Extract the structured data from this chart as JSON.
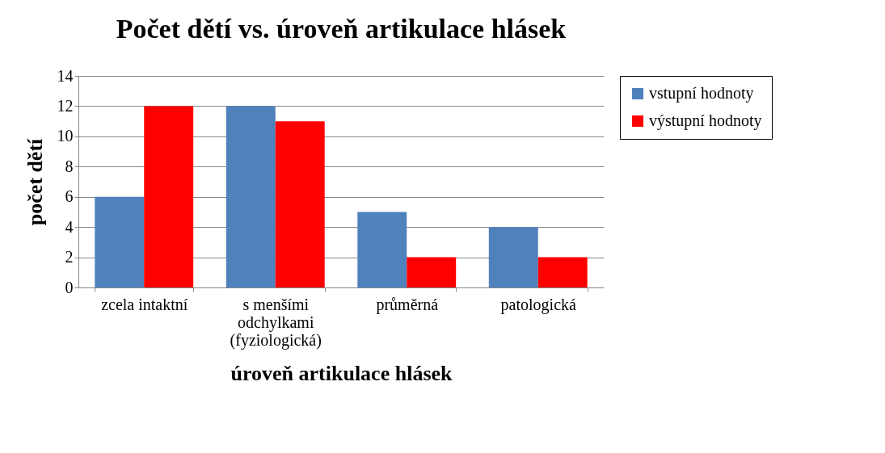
{
  "chart_data": {
    "type": "bar",
    "title": "Počet dětí vs. úroveň artikulace hlásek",
    "xlabel": "úroveň artikulace hlásek",
    "ylabel": "počet dětí",
    "categories": [
      "zcela intaktní",
      "s menšími odchylkami (fyziologická)",
      "průměrná",
      "patologická"
    ],
    "series": [
      {
        "name": "vstupní hodnoty",
        "color": "#4f81bd",
        "values": [
          6,
          12,
          5,
          4
        ]
      },
      {
        "name": "výstupní hodnoty",
        "color": "#ff0000",
        "values": [
          12,
          11,
          2,
          2
        ]
      }
    ],
    "ylim": [
      0,
      14
    ],
    "yticks": [
      0,
      2,
      4,
      6,
      8,
      10,
      12,
      14
    ],
    "grid": "y",
    "legend": "right"
  }
}
